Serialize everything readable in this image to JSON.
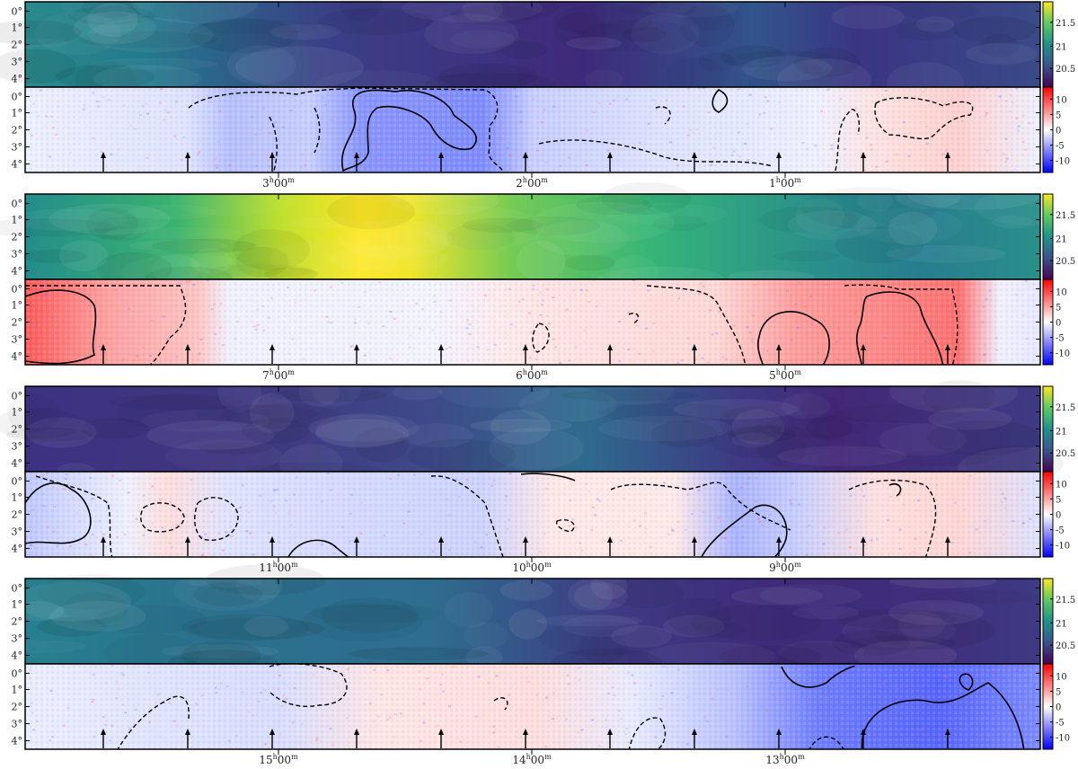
{
  "figure": {
    "dec_ticks": [
      "0°",
      "1°",
      "2°",
      "3°",
      "4°"
    ],
    "colorbar_top_ticks": [
      "21.5",
      "21",
      "20.5"
    ],
    "colorbar_bottom_ticks": [
      "10",
      "5",
      "0",
      "-5",
      "-10"
    ],
    "colors": {
      "viridis": [
        "#440154",
        "#3b528b",
        "#21918c",
        "#5ec962",
        "#fde725"
      ],
      "residual": [
        "#0000ff",
        "#ffffff",
        "#ff0000"
      ]
    }
  },
  "strips": [
    {
      "ra_labels": [
        {
          "h": "3",
          "m": "00"
        },
        {
          "h": "2",
          "m": "00"
        },
        {
          "h": "1",
          "m": "00"
        }
      ],
      "top_level": 0.25,
      "residual_sign": "negative"
    },
    {
      "ra_labels": [
        {
          "h": "7",
          "m": "00"
        },
        {
          "h": "6",
          "m": "00"
        },
        {
          "h": "5",
          "m": "00"
        }
      ],
      "top_level": 0.75,
      "residual_sign": "positive"
    },
    {
      "ra_labels": [
        {
          "h": "11",
          "m": "00"
        },
        {
          "h": "10",
          "m": "00"
        },
        {
          "h": "9",
          "m": "00"
        }
      ],
      "top_level": 0.15,
      "residual_sign": "mixed"
    },
    {
      "ra_labels": [
        {
          "h": "15",
          "m": "00"
        },
        {
          "h": "14",
          "m": "00"
        },
        {
          "h": "13",
          "m": "00"
        }
      ],
      "top_level": 0.22,
      "residual_sign": "mixed"
    }
  ]
}
